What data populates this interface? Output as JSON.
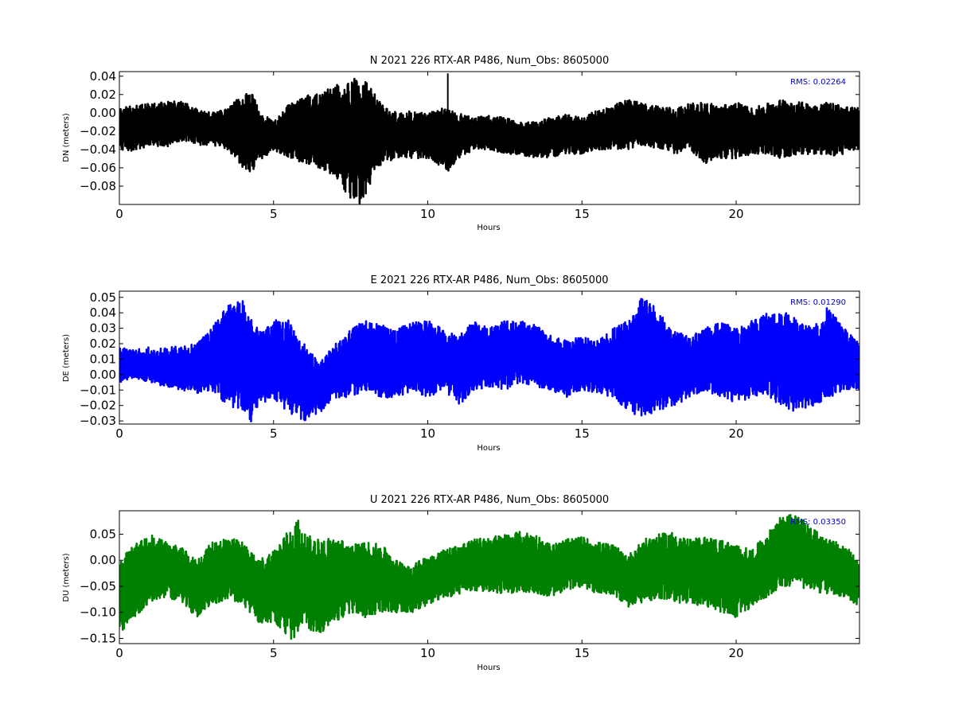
{
  "chart_data": [
    {
      "type": "line",
      "component": "N",
      "title": "N 2021 226 RTX-AR  P486, Num_Obs: 8605000",
      "xlabel": "Hours",
      "ylabel": "DN (meters)",
      "color": "#000000",
      "xlim": [
        0,
        24
      ],
      "ylim": [
        -0.1,
        0.045
      ],
      "xticks": [
        "0",
        "5",
        "10",
        "15",
        "20"
      ],
      "yticks": [
        "0.04",
        "0.02",
        "0.00",
        "−0.02",
        "−0.04",
        "−0.06",
        "−0.08"
      ],
      "rms_label": "RMS:  0.02264",
      "rms_color": "#0000cc",
      "envelope": {
        "hours": [
          0,
          0.5,
          1,
          1.5,
          2,
          2.5,
          3,
          3.5,
          4,
          4.3,
          4.5,
          5,
          5.5,
          6,
          6.5,
          7,
          7.5,
          7.8,
          8,
          8.3,
          8.5,
          9,
          9.5,
          10,
          10.5,
          10.7,
          11,
          11.5,
          12,
          12.5,
          13,
          13.5,
          14,
          14.5,
          15,
          15.5,
          16,
          16.5,
          17,
          17.5,
          18,
          18.5,
          19,
          19.5,
          20,
          20.5,
          21,
          21.5,
          22,
          22.5,
          23,
          23.5,
          24
        ],
        "max": [
          0.005,
          0.008,
          0.01,
          0.012,
          0.013,
          0.005,
          0.0,
          0.005,
          0.02,
          0.023,
          0.005,
          -0.01,
          0.01,
          0.02,
          0.022,
          0.03,
          0.035,
          0.045,
          0.035,
          0.02,
          0.01,
          0.0,
          0.002,
          0.0,
          0.005,
          0.005,
          0.0,
          -0.005,
          -0.003,
          -0.005,
          -0.01,
          -0.01,
          -0.005,
          -0.002,
          -0.005,
          0.003,
          0.008,
          0.015,
          0.01,
          0.008,
          0.005,
          0.01,
          0.012,
          0.008,
          0.012,
          0.005,
          0.01,
          0.015,
          0.012,
          0.01,
          0.012,
          0.008,
          0.005
        ],
        "min": [
          -0.04,
          -0.042,
          -0.035,
          -0.038,
          -0.03,
          -0.035,
          -0.035,
          -0.04,
          -0.06,
          -0.065,
          -0.055,
          -0.04,
          -0.05,
          -0.055,
          -0.06,
          -0.07,
          -0.095,
          -0.1,
          -0.09,
          -0.07,
          -0.055,
          -0.05,
          -0.05,
          -0.05,
          -0.06,
          -0.065,
          -0.05,
          -0.04,
          -0.04,
          -0.045,
          -0.045,
          -0.05,
          -0.048,
          -0.045,
          -0.045,
          -0.04,
          -0.04,
          -0.04,
          -0.035,
          -0.04,
          -0.045,
          -0.04,
          -0.055,
          -0.05,
          -0.05,
          -0.045,
          -0.045,
          -0.05,
          -0.045,
          -0.045,
          -0.048,
          -0.045,
          -0.04
        ]
      },
      "spikes": [
        {
          "hour": 10.65,
          "value": 0.043
        }
      ]
    },
    {
      "type": "line",
      "component": "E",
      "title": "E 2021 226 RTX-AR  P486, Num_Obs: 8605000",
      "xlabel": "Hours",
      "ylabel": "DE (meters)",
      "color": "#0000ff",
      "xlim": [
        0,
        24
      ],
      "ylim": [
        -0.032,
        0.054
      ],
      "xticks": [
        "0",
        "5",
        "10",
        "15",
        "20"
      ],
      "yticks": [
        "0.05",
        "0.04",
        "0.03",
        "0.02",
        "0.01",
        "0.00",
        "−0.01",
        "−0.02",
        "−0.03"
      ],
      "rms_label": "RMS:  0.01290",
      "rms_color": "#0000cc",
      "envelope": {
        "hours": [
          0,
          0.5,
          1,
          1.5,
          2,
          2.5,
          3,
          3.5,
          4,
          4.3,
          4.5,
          5,
          5.5,
          6,
          6.5,
          7,
          7.5,
          8,
          8.5,
          9,
          9.5,
          10,
          10.5,
          11,
          11.5,
          12,
          12.5,
          13,
          13.5,
          14,
          14.5,
          15,
          15.5,
          16,
          16.5,
          17,
          17.5,
          18,
          18.5,
          19,
          19.5,
          20,
          20.5,
          21,
          21.5,
          22,
          22.5,
          23,
          23.5,
          24
        ],
        "max": [
          0.018,
          0.016,
          0.018,
          0.017,
          0.019,
          0.02,
          0.03,
          0.045,
          0.048,
          0.035,
          0.03,
          0.035,
          0.038,
          0.02,
          0.008,
          0.02,
          0.03,
          0.035,
          0.032,
          0.03,
          0.034,
          0.035,
          0.03,
          0.025,
          0.035,
          0.03,
          0.035,
          0.035,
          0.032,
          0.025,
          0.022,
          0.025,
          0.022,
          0.03,
          0.035,
          0.054,
          0.04,
          0.028,
          0.025,
          0.03,
          0.035,
          0.03,
          0.035,
          0.04,
          0.042,
          0.035,
          0.03,
          0.045,
          0.03,
          0.02
        ],
        "min": [
          -0.005,
          -0.002,
          -0.005,
          -0.008,
          -0.01,
          -0.012,
          -0.01,
          -0.02,
          -0.025,
          -0.032,
          -0.02,
          -0.015,
          -0.025,
          -0.03,
          -0.025,
          -0.015,
          -0.015,
          -0.01,
          -0.015,
          -0.015,
          -0.01,
          -0.015,
          -0.01,
          -0.02,
          -0.01,
          -0.008,
          -0.01,
          -0.005,
          -0.008,
          -0.01,
          -0.015,
          -0.01,
          -0.012,
          -0.015,
          -0.025,
          -0.028,
          -0.025,
          -0.02,
          -0.015,
          -0.01,
          -0.015,
          -0.018,
          -0.015,
          -0.015,
          -0.02,
          -0.025,
          -0.02,
          -0.015,
          -0.01,
          -0.01
        ]
      },
      "spikes": []
    },
    {
      "type": "line",
      "component": "U",
      "title": "U 2021 226 RTX-AR  P486, Num_Obs: 8605000",
      "xlabel": "Hours",
      "ylabel": "DU (meters)",
      "color": "#008000",
      "xlim": [
        0,
        24
      ],
      "ylim": [
        -0.16,
        0.095
      ],
      "xticks": [
        "0",
        "5",
        "10",
        "15",
        "20"
      ],
      "yticks": [
        "0.05",
        "0.00",
        "−0.05",
        "−0.10",
        "−0.15"
      ],
      "rms_label": "RMS:  0.03350",
      "rms_color": "#0000cc",
      "envelope": {
        "hours": [
          0,
          0.5,
          1,
          1.5,
          2,
          2.5,
          3,
          3.5,
          4,
          4.5,
          5,
          5.5,
          5.8,
          6,
          6.5,
          7,
          7.5,
          8,
          8.5,
          9,
          9.5,
          10,
          10.5,
          11,
          11.5,
          12,
          12.5,
          13,
          13.5,
          14,
          14.5,
          15,
          15.5,
          16,
          16.5,
          17,
          17.5,
          18,
          18.5,
          19,
          19.5,
          20,
          20.5,
          21,
          21.5,
          22,
          22.5,
          23,
          23.5,
          24
        ],
        "max": [
          0.0,
          0.03,
          0.05,
          0.035,
          0.025,
          0.0,
          0.035,
          0.045,
          0.035,
          0.0,
          0.02,
          0.06,
          0.08,
          0.05,
          0.04,
          0.045,
          0.03,
          0.035,
          0.03,
          0.0,
          -0.01,
          0.01,
          0.02,
          0.03,
          0.04,
          0.045,
          0.05,
          0.055,
          0.05,
          0.03,
          0.04,
          0.045,
          0.035,
          0.03,
          0.01,
          0.04,
          0.05,
          0.055,
          0.04,
          0.045,
          0.04,
          0.03,
          0.02,
          0.05,
          0.09,
          0.085,
          0.06,
          0.04,
          0.03,
          0.0
        ],
        "min": [
          -0.14,
          -0.11,
          -0.08,
          -0.07,
          -0.08,
          -0.11,
          -0.085,
          -0.075,
          -0.085,
          -0.12,
          -0.12,
          -0.16,
          -0.14,
          -0.13,
          -0.14,
          -0.12,
          -0.1,
          -0.11,
          -0.1,
          -0.1,
          -0.1,
          -0.085,
          -0.075,
          -0.065,
          -0.06,
          -0.06,
          -0.065,
          -0.06,
          -0.065,
          -0.07,
          -0.06,
          -0.05,
          -0.065,
          -0.065,
          -0.09,
          -0.08,
          -0.075,
          -0.08,
          -0.085,
          -0.09,
          -0.1,
          -0.11,
          -0.09,
          -0.07,
          -0.05,
          -0.05,
          -0.06,
          -0.065,
          -0.07,
          -0.09
        ]
      },
      "spikes": []
    }
  ]
}
